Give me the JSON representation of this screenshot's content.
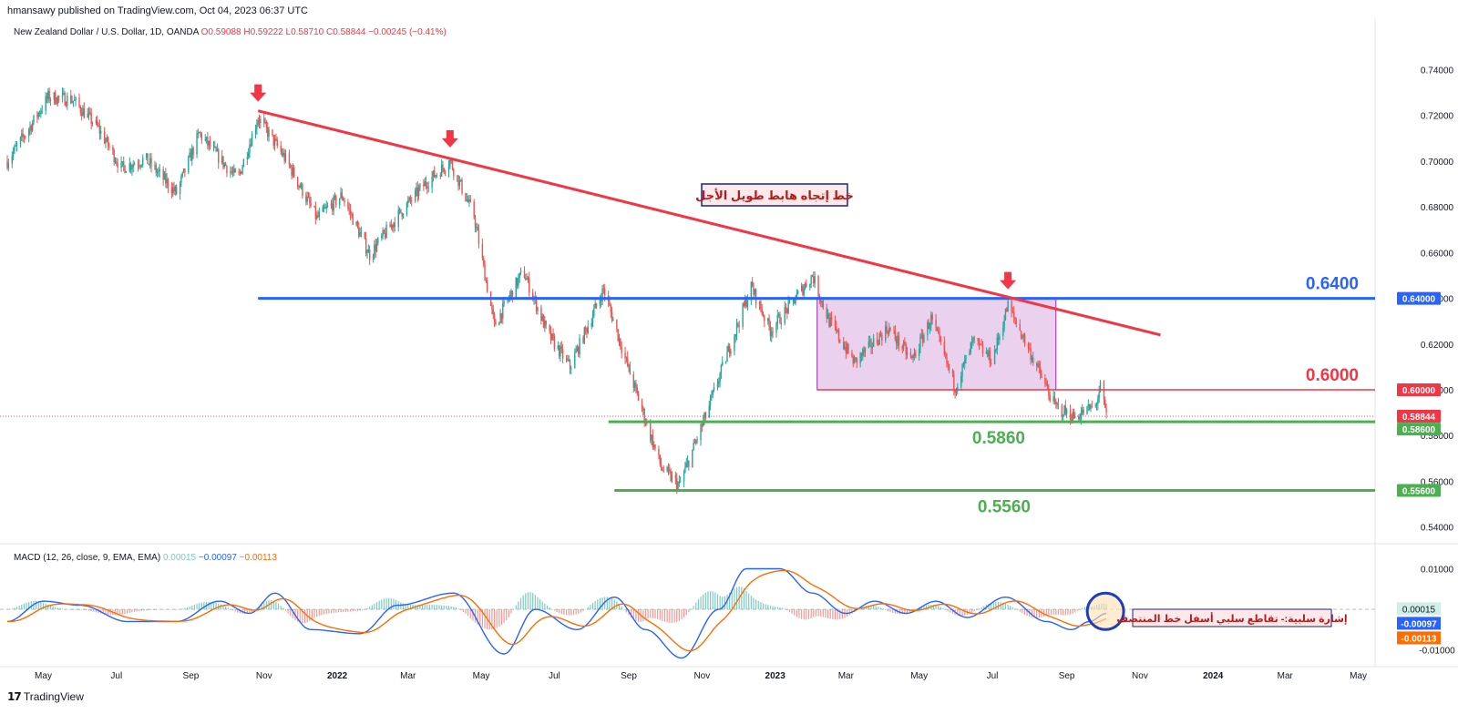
{
  "header": {
    "published": "hmansawy published on TradingView.com, Oct 04, 2023 06:37 UTC",
    "symbol": "New Zealand Dollar / U.S. Dollar, 1D, OANDA",
    "ohlc": [
      "O0.59088",
      "H0.59222",
      "L0.58710",
      "C0.58844",
      "−0.00245 (−0.41%)"
    ]
  },
  "macd_legend": {
    "label": "MACD (12, 26, close, 9, EMA, EMA)",
    "values": [
      "0.00015",
      "−0.00097",
      "−0.00113"
    ]
  },
  "footer": {
    "brand": "TradingView"
  },
  "colors": {
    "up": "#26a69a",
    "down": "#ef5350",
    "trend": "#f23645",
    "resistance": "#2962ff",
    "support": "#4caf50",
    "box": "#e1bee7",
    "macd": "#2962ff",
    "signal": "#ff6d00"
  },
  "chart_data": [
    {
      "type": "candlestick",
      "title": "",
      "x_ticks": [
        "May",
        "Jul",
        "Sep",
        "Nov",
        "2022",
        "Mar",
        "May",
        "Jul",
        "Sep",
        "Nov",
        "2023",
        "Mar",
        "May",
        "Jul",
        "Sep",
        "Nov",
        "2024",
        "Mar",
        "May"
      ],
      "y_ticks": [
        "0.74000",
        "0.72000",
        "0.70000",
        "0.68000",
        "0.66000",
        "0.64000",
        "0.62000",
        "0.60000",
        "0.58000",
        "0.56000",
        "0.54000"
      ],
      "ylim": [
        0.5335,
        0.7585
      ],
      "price_path": [
        {
          "date": "2021-04-01",
          "price": 0.7
        },
        {
          "date": "2021-04-20",
          "price": 0.715
        },
        {
          "date": "2021-05-05",
          "price": 0.728
        },
        {
          "date": "2021-05-25",
          "price": 0.727
        },
        {
          "date": "2021-06-15",
          "price": 0.715
        },
        {
          "date": "2021-07-05",
          "price": 0.697
        },
        {
          "date": "2021-07-25",
          "price": 0.701
        },
        {
          "date": "2021-08-20",
          "price": 0.686
        },
        {
          "date": "2021-09-08",
          "price": 0.712
        },
        {
          "date": "2021-09-22",
          "price": 0.703
        },
        {
          "date": "2021-10-10",
          "price": 0.692
        },
        {
          "date": "2021-10-27",
          "price": 0.719
        },
        {
          "date": "2021-11-20",
          "price": 0.7
        },
        {
          "date": "2021-12-15",
          "price": 0.675
        },
        {
          "date": "2022-01-05",
          "price": 0.685
        },
        {
          "date": "2022-01-28",
          "price": 0.659
        },
        {
          "date": "2022-02-22",
          "price": 0.677
        },
        {
          "date": "2022-03-15",
          "price": 0.69
        },
        {
          "date": "2022-04-05",
          "price": 0.7
        },
        {
          "date": "2022-04-25",
          "price": 0.676
        },
        {
          "date": "2022-05-12",
          "price": 0.628
        },
        {
          "date": "2022-06-05",
          "price": 0.652
        },
        {
          "date": "2022-06-25",
          "price": 0.625
        },
        {
          "date": "2022-07-14",
          "price": 0.61
        },
        {
          "date": "2022-08-11",
          "price": 0.644
        },
        {
          "date": "2022-08-30",
          "price": 0.612
        },
        {
          "date": "2022-09-28",
          "price": 0.566
        },
        {
          "date": "2022-10-13",
          "price": 0.558
        },
        {
          "date": "2022-11-05",
          "price": 0.59
        },
        {
          "date": "2022-11-25",
          "price": 0.62
        },
        {
          "date": "2022-12-12",
          "price": 0.645
        },
        {
          "date": "2022-12-28",
          "price": 0.626
        },
        {
          "date": "2023-01-15",
          "price": 0.638
        },
        {
          "date": "2023-02-01",
          "price": 0.65
        },
        {
          "date": "2023-02-15",
          "price": 0.63
        },
        {
          "date": "2023-03-08",
          "price": 0.612
        },
        {
          "date": "2023-04-05",
          "price": 0.627
        },
        {
          "date": "2023-04-25",
          "price": 0.613
        },
        {
          "date": "2023-05-11",
          "price": 0.631
        },
        {
          "date": "2023-05-31",
          "price": 0.601
        },
        {
          "date": "2023-06-15",
          "price": 0.621
        },
        {
          "date": "2023-07-01",
          "price": 0.613
        },
        {
          "date": "2023-07-14",
          "price": 0.637
        },
        {
          "date": "2023-08-01",
          "price": 0.617
        },
        {
          "date": "2023-08-22",
          "price": 0.593
        },
        {
          "date": "2023-09-07",
          "price": 0.588
        },
        {
          "date": "2023-09-25",
          "price": 0.593
        },
        {
          "date": "2023-09-29",
          "price": 0.601
        },
        {
          "date": "2023-10-04",
          "price": 0.5884
        }
      ],
      "annotations": {
        "trendline": {
          "from": {
            "date": "2021-10-27",
            "price": 0.722
          },
          "to": {
            "date": "2023-11-18",
            "price": 0.624
          },
          "label": "خط إتجاه هابط طويل الأجل"
        },
        "levels": [
          {
            "price": 0.64,
            "text": "0.6400",
            "axis_badge": "0.64000",
            "from_date": "2021-10-27"
          },
          {
            "price": 0.6,
            "text": "0.6000",
            "axis_badge": "0.60000",
            "from_date": "2023-02-05"
          },
          {
            "price": 0.586,
            "text": "0.5860",
            "axis_badge": "0.58600",
            "from_date": "2022-08-15"
          },
          {
            "price": 0.556,
            "text": "0.5560",
            "axis_badge": "0.55600",
            "from_date": "2022-08-20"
          }
        ],
        "current_price": {
          "price": 0.58844,
          "badge": "0.58844"
        },
        "range_box": {
          "from_date": "2023-02-05",
          "to_date": "2023-08-23",
          "top": 0.64,
          "bottom": 0.6
        },
        "arrows": [
          {
            "date": "2021-10-27",
            "price": 0.722
          },
          {
            "date": "2022-04-05",
            "price": 0.702
          },
          {
            "date": "2023-07-14",
            "price": 0.64
          }
        ]
      }
    },
    {
      "type": "line",
      "title": "",
      "series": [
        {
          "name": "MACD"
        },
        {
          "name": "Signal"
        },
        {
          "name": "Histogram"
        }
      ],
      "y_ticks": [
        "0.01000",
        "-0.01000"
      ],
      "ylim": [
        -0.0148,
        0.0155
      ],
      "macd_path": [
        {
          "date": "2021-04-01",
          "value": -0.003
        },
        {
          "date": "2021-05-01",
          "value": 0.002
        },
        {
          "date": "2021-06-01",
          "value": 0.001
        },
        {
          "date": "2021-07-10",
          "value": -0.003
        },
        {
          "date": "2021-08-20",
          "value": -0.003
        },
        {
          "date": "2021-09-25",
          "value": 0.002
        },
        {
          "date": "2021-10-20",
          "value": -0.001
        },
        {
          "date": "2021-11-10",
          "value": 0.004
        },
        {
          "date": "2021-12-10",
          "value": -0.005
        },
        {
          "date": "2022-01-20",
          "value": -0.006
        },
        {
          "date": "2022-02-20",
          "value": 0.001
        },
        {
          "date": "2022-04-08",
          "value": 0.004
        },
        {
          "date": "2022-05-20",
          "value": -0.011
        },
        {
          "date": "2022-06-15",
          "value": 0.0
        },
        {
          "date": "2022-07-20",
          "value": -0.005
        },
        {
          "date": "2022-08-20",
          "value": 0.003
        },
        {
          "date": "2022-09-15",
          "value": -0.005
        },
        {
          "date": "2022-10-15",
          "value": -0.012
        },
        {
          "date": "2022-11-15",
          "value": 0.0
        },
        {
          "date": "2022-12-08",
          "value": 0.01
        },
        {
          "date": "2023-01-05",
          "value": 0.01
        },
        {
          "date": "2023-02-01",
          "value": 0.004
        },
        {
          "date": "2023-03-01",
          "value": -0.001
        },
        {
          "date": "2023-03-25",
          "value": 0.002
        },
        {
          "date": "2023-04-20",
          "value": -0.001
        },
        {
          "date": "2023-05-15",
          "value": 0.002
        },
        {
          "date": "2023-06-10",
          "value": -0.002
        },
        {
          "date": "2023-07-12",
          "value": 0.003
        },
        {
          "date": "2023-08-15",
          "value": -0.003
        },
        {
          "date": "2023-09-05",
          "value": -0.005
        },
        {
          "date": "2023-09-20",
          "value": -0.003
        },
        {
          "date": "2023-10-04",
          "value": -0.001
        }
      ],
      "badges": [
        "0.00015",
        "-0.00097",
        "-0.00113"
      ],
      "annotation": {
        "label": "إشارة سلبية:- تقاطع سلبي أسفل خط المنتصف",
        "circle_date": "2023-10-01"
      }
    }
  ]
}
